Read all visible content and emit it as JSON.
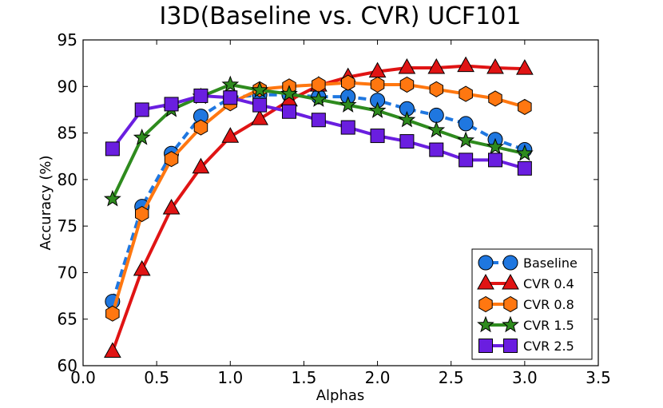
{
  "chart_data": {
    "type": "line",
    "title": "I3D(Baseline vs. CVR) UCF101",
    "xlabel": "Alphas",
    "ylabel": "Accuracy (%)",
    "xlim": [
      0.0,
      3.5
    ],
    "ylim": [
      60,
      95
    ],
    "xticks": [
      "0.0",
      "0.5",
      "1.0",
      "1.5",
      "2.0",
      "2.5",
      "3.0",
      "3.5"
    ],
    "yticks": [
      "60",
      "65",
      "70",
      "75",
      "80",
      "85",
      "90",
      "95"
    ],
    "grid": false,
    "legend_position": "bottom-right",
    "x": [
      0.2,
      0.4,
      0.6,
      0.8,
      1.0,
      1.2,
      1.4,
      1.6,
      1.8,
      2.0,
      2.2,
      2.4,
      2.6,
      2.8,
      3.0
    ],
    "series": [
      {
        "name": "Baseline",
        "color": "#1f77e0",
        "marker": "circle",
        "linestyle": "dashed",
        "values": [
          66.9,
          77.1,
          82.8,
          86.8,
          88.8,
          89.1,
          89.1,
          88.9,
          88.9,
          88.5,
          87.6,
          86.9,
          86.0,
          84.3,
          83.2
        ]
      },
      {
        "name": "CVR 0.4",
        "color": "#e01414",
        "marker": "triangle",
        "linestyle": "solid",
        "values": [
          61.5,
          70.3,
          76.9,
          81.3,
          84.6,
          86.5,
          88.5,
          90.1,
          91.0,
          91.6,
          92.0,
          92.0,
          92.2,
          92.0,
          91.9
        ]
      },
      {
        "name": "CVR 0.8",
        "color": "#ff7710",
        "marker": "hexagon",
        "linestyle": "solid",
        "values": [
          65.6,
          76.3,
          82.2,
          85.6,
          88.2,
          89.7,
          90.0,
          90.2,
          90.4,
          90.2,
          90.2,
          89.7,
          89.2,
          88.7,
          87.8
        ]
      },
      {
        "name": "CVR 1.5",
        "color": "#2e8b1e",
        "marker": "star",
        "linestyle": "solid",
        "values": [
          77.9,
          84.5,
          87.5,
          88.9,
          90.2,
          89.6,
          89.2,
          88.6,
          88.0,
          87.4,
          86.4,
          85.3,
          84.2,
          83.5,
          82.8
        ]
      },
      {
        "name": "CVR 2.5",
        "color": "#6a1ee0",
        "marker": "square",
        "linestyle": "solid",
        "values": [
          83.3,
          87.5,
          88.1,
          89.0,
          88.8,
          88.0,
          87.3,
          86.4,
          85.6,
          84.7,
          84.1,
          83.2,
          82.1,
          82.1,
          81.2
        ]
      }
    ]
  }
}
